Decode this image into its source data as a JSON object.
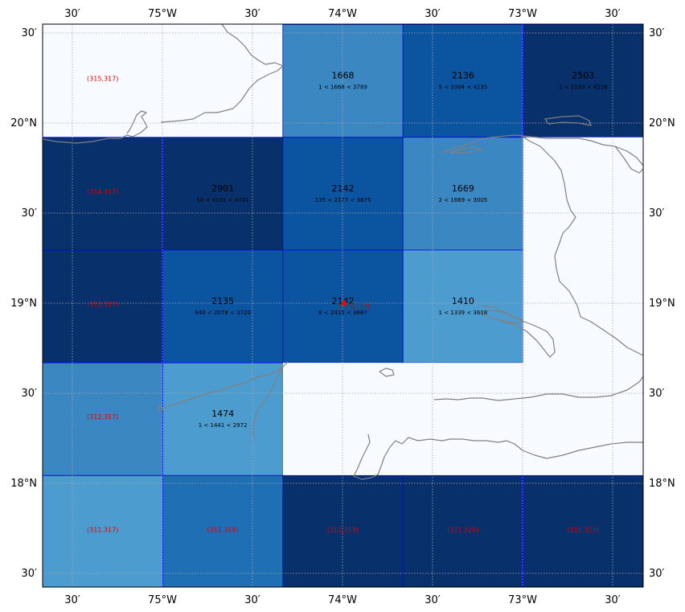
{
  "map": {
    "lat_labels": [
      "30′",
      "20°N",
      "30′",
      "19°N",
      "30′",
      "18°N",
      "30′"
    ],
    "lon_labels": [
      "30′",
      "75°W",
      "30′",
      "74°W",
      "30′",
      "73°W",
      "30′"
    ],
    "colors": {
      "empty": "#f7fbff",
      "medium": "#3a87c2",
      "strong": "#0b54a0",
      "darkest": "#08306b",
      "light": "#4d9ccf",
      "mid2": "#1e6fb4",
      "grid_line": "#0000ff",
      "coastline": "#808080",
      "id_label": "#e00000"
    },
    "cells": [
      {
        "row": 0,
        "col": 0,
        "fill": "empty",
        "id": "(315,317)"
      },
      {
        "row": 0,
        "col": 1,
        "fill": "empty"
      },
      {
        "row": 0,
        "col": 2,
        "fill": "medium",
        "value": "1668",
        "range": "1 < 1668 < 3789"
      },
      {
        "row": 0,
        "col": 3,
        "fill": "strong",
        "value": "2136",
        "range": "5 < 2004 < 4235"
      },
      {
        "row": 0,
        "col": 4,
        "fill": "darkest",
        "value": "2503",
        "range": "1 < 2193 < 4216"
      },
      {
        "row": 1,
        "col": 0,
        "fill": "darkest",
        "id": "(314,317)"
      },
      {
        "row": 1,
        "col": 1,
        "fill": "darkest",
        "value": "2901",
        "range": "10 < 3191 < 4741"
      },
      {
        "row": 1,
        "col": 2,
        "fill": "strong",
        "value": "2142",
        "range": "135 < 2177 < 3875"
      },
      {
        "row": 1,
        "col": 3,
        "fill": "medium",
        "value": "1669",
        "range": "2 < 1669 < 3005"
      },
      {
        "row": 1,
        "col": 4,
        "fill": "empty"
      },
      {
        "row": 2,
        "col": 0,
        "fill": "darkest",
        "id": "(313,317)"
      },
      {
        "row": 2,
        "col": 1,
        "fill": "strong",
        "value": "2135",
        "range": "840 < 2078 < 3720"
      },
      {
        "row": 2,
        "col": 2,
        "fill": "strong",
        "value": "2142",
        "range": "8 < 2415 < 3667",
        "id": "(313,319)"
      },
      {
        "row": 2,
        "col": 3,
        "fill": "light",
        "value": "1410",
        "range": "1 < 1339 < 3618"
      },
      {
        "row": 2,
        "col": 4,
        "fill": "empty"
      },
      {
        "row": 3,
        "col": 0,
        "fill": "medium",
        "id": "(312,317)"
      },
      {
        "row": 3,
        "col": 1,
        "fill": "light",
        "value": "1474",
        "range": "1 < 1441 < 2972"
      },
      {
        "row": 3,
        "col": 2,
        "fill": "empty"
      },
      {
        "row": 3,
        "col": 3,
        "fill": "empty"
      },
      {
        "row": 3,
        "col": 4,
        "fill": "empty"
      },
      {
        "row": 4,
        "col": 0,
        "fill": "light",
        "id": "(311,317)"
      },
      {
        "row": 4,
        "col": 1,
        "fill": "mid2",
        "id": "(311,318)"
      },
      {
        "row": 4,
        "col": 2,
        "fill": "darkest",
        "id": "(311,319)"
      },
      {
        "row": 4,
        "col": 3,
        "fill": "darkest",
        "id": "(311,320)"
      },
      {
        "row": 4,
        "col": 4,
        "fill": "darkest",
        "id": "(311,321)"
      }
    ]
  }
}
